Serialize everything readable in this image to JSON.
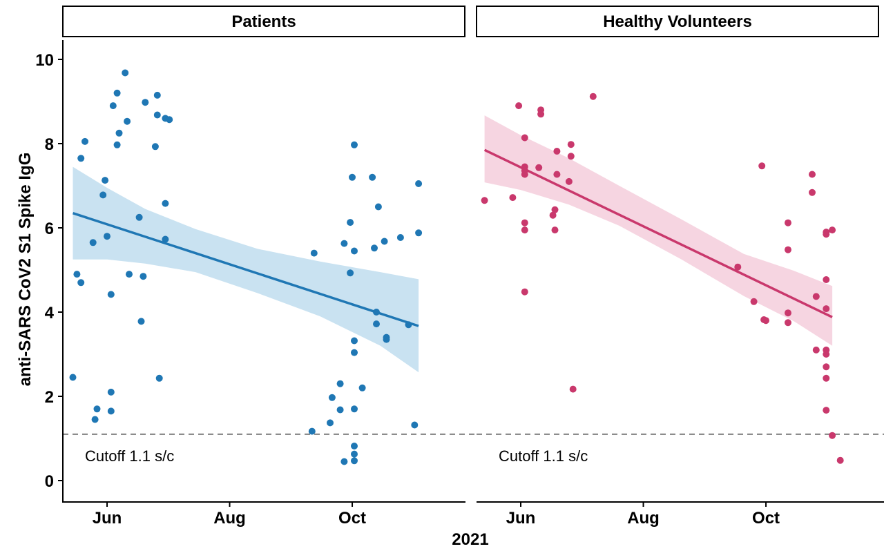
{
  "chart_data": {
    "type": "scatter",
    "xlabel": "2021",
    "ylabel": "anti-SARS CoV2 S1 Spike IgG",
    "ylim": [
      0,
      10
    ],
    "y_ticks": [
      "0",
      "2",
      "4",
      "6",
      "8",
      "10"
    ],
    "x_range": [
      "2021-05-10",
      "2021-11-26"
    ],
    "x_ticks": [
      {
        "label": "Jun",
        "date": "2021-06-01"
      },
      {
        "label": "Aug",
        "date": "2021-08-01"
      },
      {
        "label": "Oct",
        "date": "2021-10-01"
      }
    ],
    "grid": false,
    "legend": "none",
    "cutoff": {
      "value": 1.1,
      "label": "Cutoff 1.1 s/c",
      "style": "dashed",
      "color": "#808080"
    },
    "panels": [
      {
        "title": "Patients",
        "color": "#1f77b4",
        "band_color": "#c6e0f0",
        "points": [
          [
            "2021-05-15",
            2.45
          ],
          [
            "2021-05-17",
            4.9
          ],
          [
            "2021-05-19",
            4.7
          ],
          [
            "2021-05-19",
            7.65
          ],
          [
            "2021-05-21",
            8.05
          ],
          [
            "2021-05-25",
            5.65
          ],
          [
            "2021-05-26",
            1.45
          ],
          [
            "2021-05-27",
            1.7
          ],
          [
            "2021-05-30",
            6.78
          ],
          [
            "2021-05-31",
            7.13
          ],
          [
            "2021-06-01",
            5.8
          ],
          [
            "2021-06-03",
            4.42
          ],
          [
            "2021-06-03",
            2.1
          ],
          [
            "2021-06-03",
            1.65
          ],
          [
            "2021-06-04",
            8.9
          ],
          [
            "2021-06-06",
            9.2
          ],
          [
            "2021-06-06",
            7.97
          ],
          [
            "2021-06-07",
            8.25
          ],
          [
            "2021-06-10",
            9.68
          ],
          [
            "2021-06-11",
            8.53
          ],
          [
            "2021-06-12",
            4.9
          ],
          [
            "2021-06-17",
            6.25
          ],
          [
            "2021-06-18",
            3.78
          ],
          [
            "2021-06-19",
            4.85
          ],
          [
            "2021-06-20",
            8.98
          ],
          [
            "2021-06-25",
            7.93
          ],
          [
            "2021-06-26",
            9.15
          ],
          [
            "2021-06-26",
            8.68
          ],
          [
            "2021-06-27",
            2.43
          ],
          [
            "2021-06-30",
            6.58
          ],
          [
            "2021-06-30",
            5.73
          ],
          [
            "2021-06-30",
            8.6
          ],
          [
            "2021-07-02",
            8.57
          ],
          [
            "2021-09-11",
            1.17
          ],
          [
            "2021-09-12",
            5.4
          ],
          [
            "2021-09-20",
            1.37
          ],
          [
            "2021-09-21",
            1.97
          ],
          [
            "2021-09-25",
            2.3
          ],
          [
            "2021-09-25",
            1.68
          ],
          [
            "2021-09-27",
            0.45
          ],
          [
            "2021-09-27",
            5.63
          ],
          [
            "2021-09-30",
            6.13
          ],
          [
            "2021-09-30",
            4.93
          ],
          [
            "2021-10-01",
            7.2
          ],
          [
            "2021-10-02",
            7.97
          ],
          [
            "2021-10-02",
            5.45
          ],
          [
            "2021-10-02",
            3.32
          ],
          [
            "2021-10-02",
            3.04
          ],
          [
            "2021-10-02",
            1.7
          ],
          [
            "2021-10-02",
            0.82
          ],
          [
            "2021-10-02",
            0.63
          ],
          [
            "2021-10-02",
            0.47
          ],
          [
            "2021-10-06",
            2.2
          ],
          [
            "2021-10-11",
            7.2
          ],
          [
            "2021-10-12",
            5.52
          ],
          [
            "2021-10-13",
            4.0
          ],
          [
            "2021-10-13",
            3.72
          ],
          [
            "2021-10-14",
            6.5
          ],
          [
            "2021-10-17",
            5.68
          ],
          [
            "2021-10-18",
            3.35
          ],
          [
            "2021-10-18",
            3.4
          ],
          [
            "2021-10-25",
            5.77
          ],
          [
            "2021-10-29",
            3.7
          ],
          [
            "2021-11-01",
            1.32
          ],
          [
            "2021-11-03",
            7.05
          ],
          [
            "2021-11-03",
            5.88
          ]
        ],
        "fit": {
          "start": [
            "2021-05-15",
            6.35
          ],
          "end": [
            "2021-11-03",
            3.67
          ]
        },
        "ci_upper": [
          [
            "2021-05-15",
            7.45
          ],
          [
            "2021-06-01",
            6.95
          ],
          [
            "2021-06-20",
            6.45
          ],
          [
            "2021-07-15",
            5.97
          ],
          [
            "2021-08-15",
            5.5
          ],
          [
            "2021-09-15",
            5.2
          ],
          [
            "2021-10-15",
            4.95
          ],
          [
            "2021-11-03",
            4.78
          ]
        ],
        "ci_lower": [
          [
            "2021-05-15",
            5.25
          ],
          [
            "2021-06-01",
            5.25
          ],
          [
            "2021-06-20",
            5.15
          ],
          [
            "2021-07-15",
            4.95
          ],
          [
            "2021-08-15",
            4.45
          ],
          [
            "2021-09-15",
            3.9
          ],
          [
            "2021-10-15",
            3.2
          ],
          [
            "2021-11-03",
            2.57
          ]
        ]
      },
      {
        "title": "Healthy Volunteers",
        "color": "#c9386c",
        "band_color": "#f6d3df",
        "points": [
          [
            "2021-05-14",
            6.65
          ],
          [
            "2021-05-28",
            6.72
          ],
          [
            "2021-05-31",
            8.9
          ],
          [
            "2021-06-03",
            8.14
          ],
          [
            "2021-06-03",
            7.45
          ],
          [
            "2021-06-03",
            7.36
          ],
          [
            "2021-06-03",
            7.27
          ],
          [
            "2021-06-03",
            6.12
          ],
          [
            "2021-06-03",
            5.95
          ],
          [
            "2021-06-03",
            4.48
          ],
          [
            "2021-06-10",
            7.43
          ],
          [
            "2021-06-11",
            8.8
          ],
          [
            "2021-06-11",
            8.7
          ],
          [
            "2021-06-17",
            6.3
          ],
          [
            "2021-06-18",
            6.43
          ],
          [
            "2021-06-18",
            5.95
          ],
          [
            "2021-06-19",
            7.82
          ],
          [
            "2021-06-19",
            7.27
          ],
          [
            "2021-06-25",
            7.1
          ],
          [
            "2021-06-26",
            7.98
          ],
          [
            "2021-06-26",
            7.7
          ],
          [
            "2021-06-27",
            2.17
          ],
          [
            "2021-07-07",
            9.12
          ],
          [
            "2021-09-17",
            5.07
          ],
          [
            "2021-09-25",
            4.25
          ],
          [
            "2021-09-29",
            7.47
          ],
          [
            "2021-09-30",
            3.82
          ],
          [
            "2021-10-01",
            3.8
          ],
          [
            "2021-10-12",
            6.12
          ],
          [
            "2021-10-12",
            5.48
          ],
          [
            "2021-10-12",
            3.98
          ],
          [
            "2021-10-12",
            3.75
          ],
          [
            "2021-10-24",
            7.27
          ],
          [
            "2021-10-24",
            6.84
          ],
          [
            "2021-10-26",
            4.37
          ],
          [
            "2021-10-26",
            3.1
          ],
          [
            "2021-10-31",
            5.9
          ],
          [
            "2021-10-31",
            5.85
          ],
          [
            "2021-10-31",
            4.77
          ],
          [
            "2021-10-31",
            4.08
          ],
          [
            "2021-10-31",
            3.1
          ],
          [
            "2021-10-31",
            3.0
          ],
          [
            "2021-10-31",
            2.7
          ],
          [
            "2021-10-31",
            2.43
          ],
          [
            "2021-10-31",
            1.67
          ],
          [
            "2021-11-03",
            5.95
          ],
          [
            "2021-11-03",
            1.07
          ],
          [
            "2021-11-07",
            0.48
          ]
        ],
        "fit": {
          "start": [
            "2021-05-14",
            7.85
          ],
          "end": [
            "2021-11-03",
            3.88
          ]
        },
        "ci_upper": [
          [
            "2021-05-14",
            8.67
          ],
          [
            "2021-06-01",
            8.2
          ],
          [
            "2021-06-25",
            7.65
          ],
          [
            "2021-07-20",
            7.0
          ],
          [
            "2021-08-20",
            6.2
          ],
          [
            "2021-09-20",
            5.38
          ],
          [
            "2021-10-15",
            4.98
          ],
          [
            "2021-11-03",
            4.62
          ]
        ],
        "ci_lower": [
          [
            "2021-05-14",
            7.08
          ],
          [
            "2021-06-01",
            6.9
          ],
          [
            "2021-06-25",
            6.55
          ],
          [
            "2021-07-20",
            6.05
          ],
          [
            "2021-08-20",
            5.25
          ],
          [
            "2021-09-20",
            4.38
          ],
          [
            "2021-10-15",
            3.78
          ],
          [
            "2021-11-03",
            3.2
          ]
        ]
      }
    ]
  }
}
